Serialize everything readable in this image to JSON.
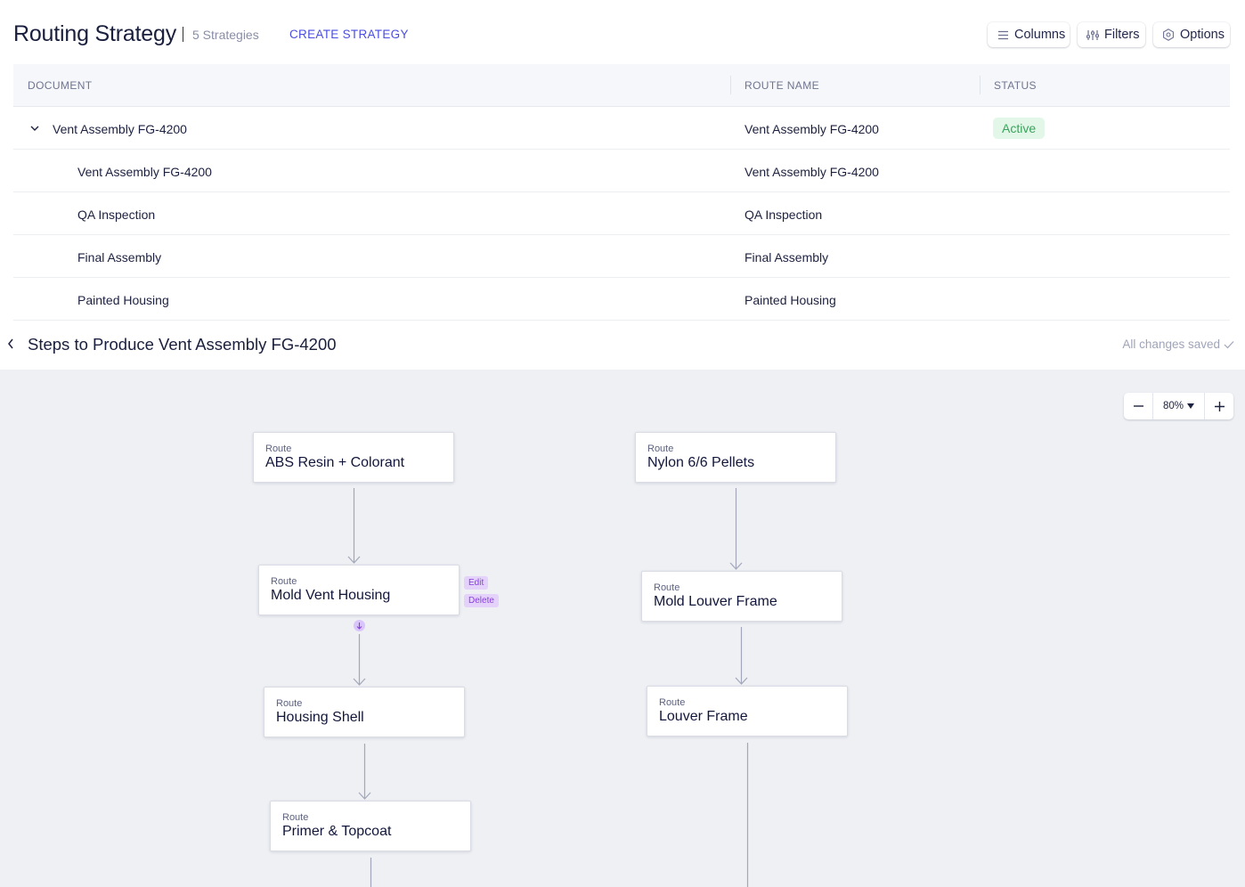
{
  "header": {
    "title": "Routing Strategy",
    "count": "5 Strategies",
    "create": "CREATE STRATEGY",
    "buttons": {
      "columns": "Columns",
      "filters": "Filters",
      "options": "Options"
    }
  },
  "table": {
    "columns": {
      "document": "DOCUMENT",
      "route": "ROUTE NAME",
      "status": "STATUS"
    },
    "rows": [
      {
        "document": "Vent Assembly FG-4200",
        "route": "Vent Assembly FG-4200",
        "status": "Active"
      },
      {
        "document": "Vent Assembly FG-4200",
        "route": "Vent Assembly FG-4200"
      },
      {
        "document": "QA Inspection",
        "route": "QA Inspection"
      },
      {
        "document": "Final Assembly",
        "route": "Final Assembly"
      },
      {
        "document": "Painted Housing",
        "route": "Painted Housing"
      }
    ]
  },
  "steps": {
    "title": "Steps to Produce Vent Assembly FG-4200",
    "saved": "All changes saved"
  },
  "zoom": {
    "value": "80%"
  },
  "nodes": [
    {
      "label": "Route",
      "name": "ABS Resin + Colorant"
    },
    {
      "label": "Route",
      "name": "Mold Vent Housing"
    },
    {
      "label": "Route",
      "name": "Housing Shell"
    },
    {
      "label": "Route",
      "name": "Primer & Topcoat"
    },
    {
      "label": "Route",
      "name": "Nylon 6/6 Pellets"
    },
    {
      "label": "Route",
      "name": "Mold Louver Frame"
    },
    {
      "label": "Route",
      "name": "Louver Frame"
    }
  ],
  "node_actions": {
    "edit": "Edit",
    "delete": "Delete"
  },
  "colors": {
    "accent": "#4b4de0",
    "active_bg": "#e3f7e9",
    "active_text": "#3aa35c",
    "canvas": "#eef0f4",
    "action_tag": "#e4d2fb"
  }
}
